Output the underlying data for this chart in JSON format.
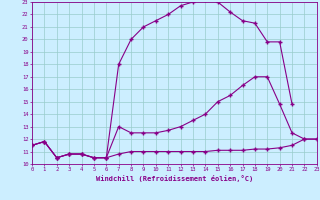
{
  "xlabel": "Windchill (Refroidissement éolien,°C)",
  "bg_color": "#cceeff",
  "line_color": "#880088",
  "grid_color": "#99cccc",
  "xlim": [
    0,
    23
  ],
  "ylim": [
    10,
    23
  ],
  "xticks": [
    0,
    1,
    2,
    3,
    4,
    5,
    6,
    7,
    8,
    9,
    10,
    11,
    12,
    13,
    14,
    15,
    16,
    17,
    18,
    19,
    20,
    21,
    22,
    23
  ],
  "yticks": [
    10,
    11,
    12,
    13,
    14,
    15,
    16,
    17,
    18,
    19,
    20,
    21,
    22,
    23
  ],
  "line1_x": [
    0,
    1,
    2,
    3,
    4,
    5,
    6,
    7,
    8,
    9,
    10,
    11,
    12,
    13,
    14,
    15,
    16,
    17,
    18,
    19,
    20,
    21,
    22,
    23
  ],
  "line1_y": [
    11.5,
    11.8,
    10.5,
    10.8,
    10.8,
    10.5,
    10.5,
    10.8,
    11.0,
    11.0,
    11.0,
    11.0,
    11.0,
    11.0,
    11.0,
    11.1,
    11.1,
    11.1,
    11.2,
    11.2,
    11.3,
    11.5,
    12.0,
    12.0
  ],
  "line2_x": [
    0,
    1,
    2,
    3,
    4,
    5,
    6,
    7,
    8,
    9,
    10,
    11,
    12,
    13,
    14,
    15,
    16,
    17,
    18,
    19,
    20,
    21,
    22,
    23
  ],
  "line2_y": [
    11.5,
    11.8,
    10.5,
    10.8,
    10.8,
    10.5,
    10.5,
    13.0,
    12.5,
    12.5,
    12.5,
    12.7,
    13.0,
    13.5,
    14.0,
    15.0,
    15.5,
    16.3,
    17.0,
    17.0,
    14.8,
    12.5,
    12.0,
    12.0
  ],
  "line3_x": [
    0,
    1,
    2,
    3,
    4,
    5,
    6,
    7,
    8,
    9,
    10,
    11,
    12,
    13,
    14,
    15,
    16,
    17,
    18,
    19,
    20,
    21
  ],
  "line3_y": [
    11.5,
    11.8,
    10.5,
    10.8,
    10.8,
    10.5,
    10.5,
    18.0,
    20.0,
    21.0,
    21.5,
    22.0,
    22.7,
    23.0,
    23.2,
    23.0,
    22.2,
    21.5,
    21.3,
    19.8,
    19.8,
    14.8
  ]
}
